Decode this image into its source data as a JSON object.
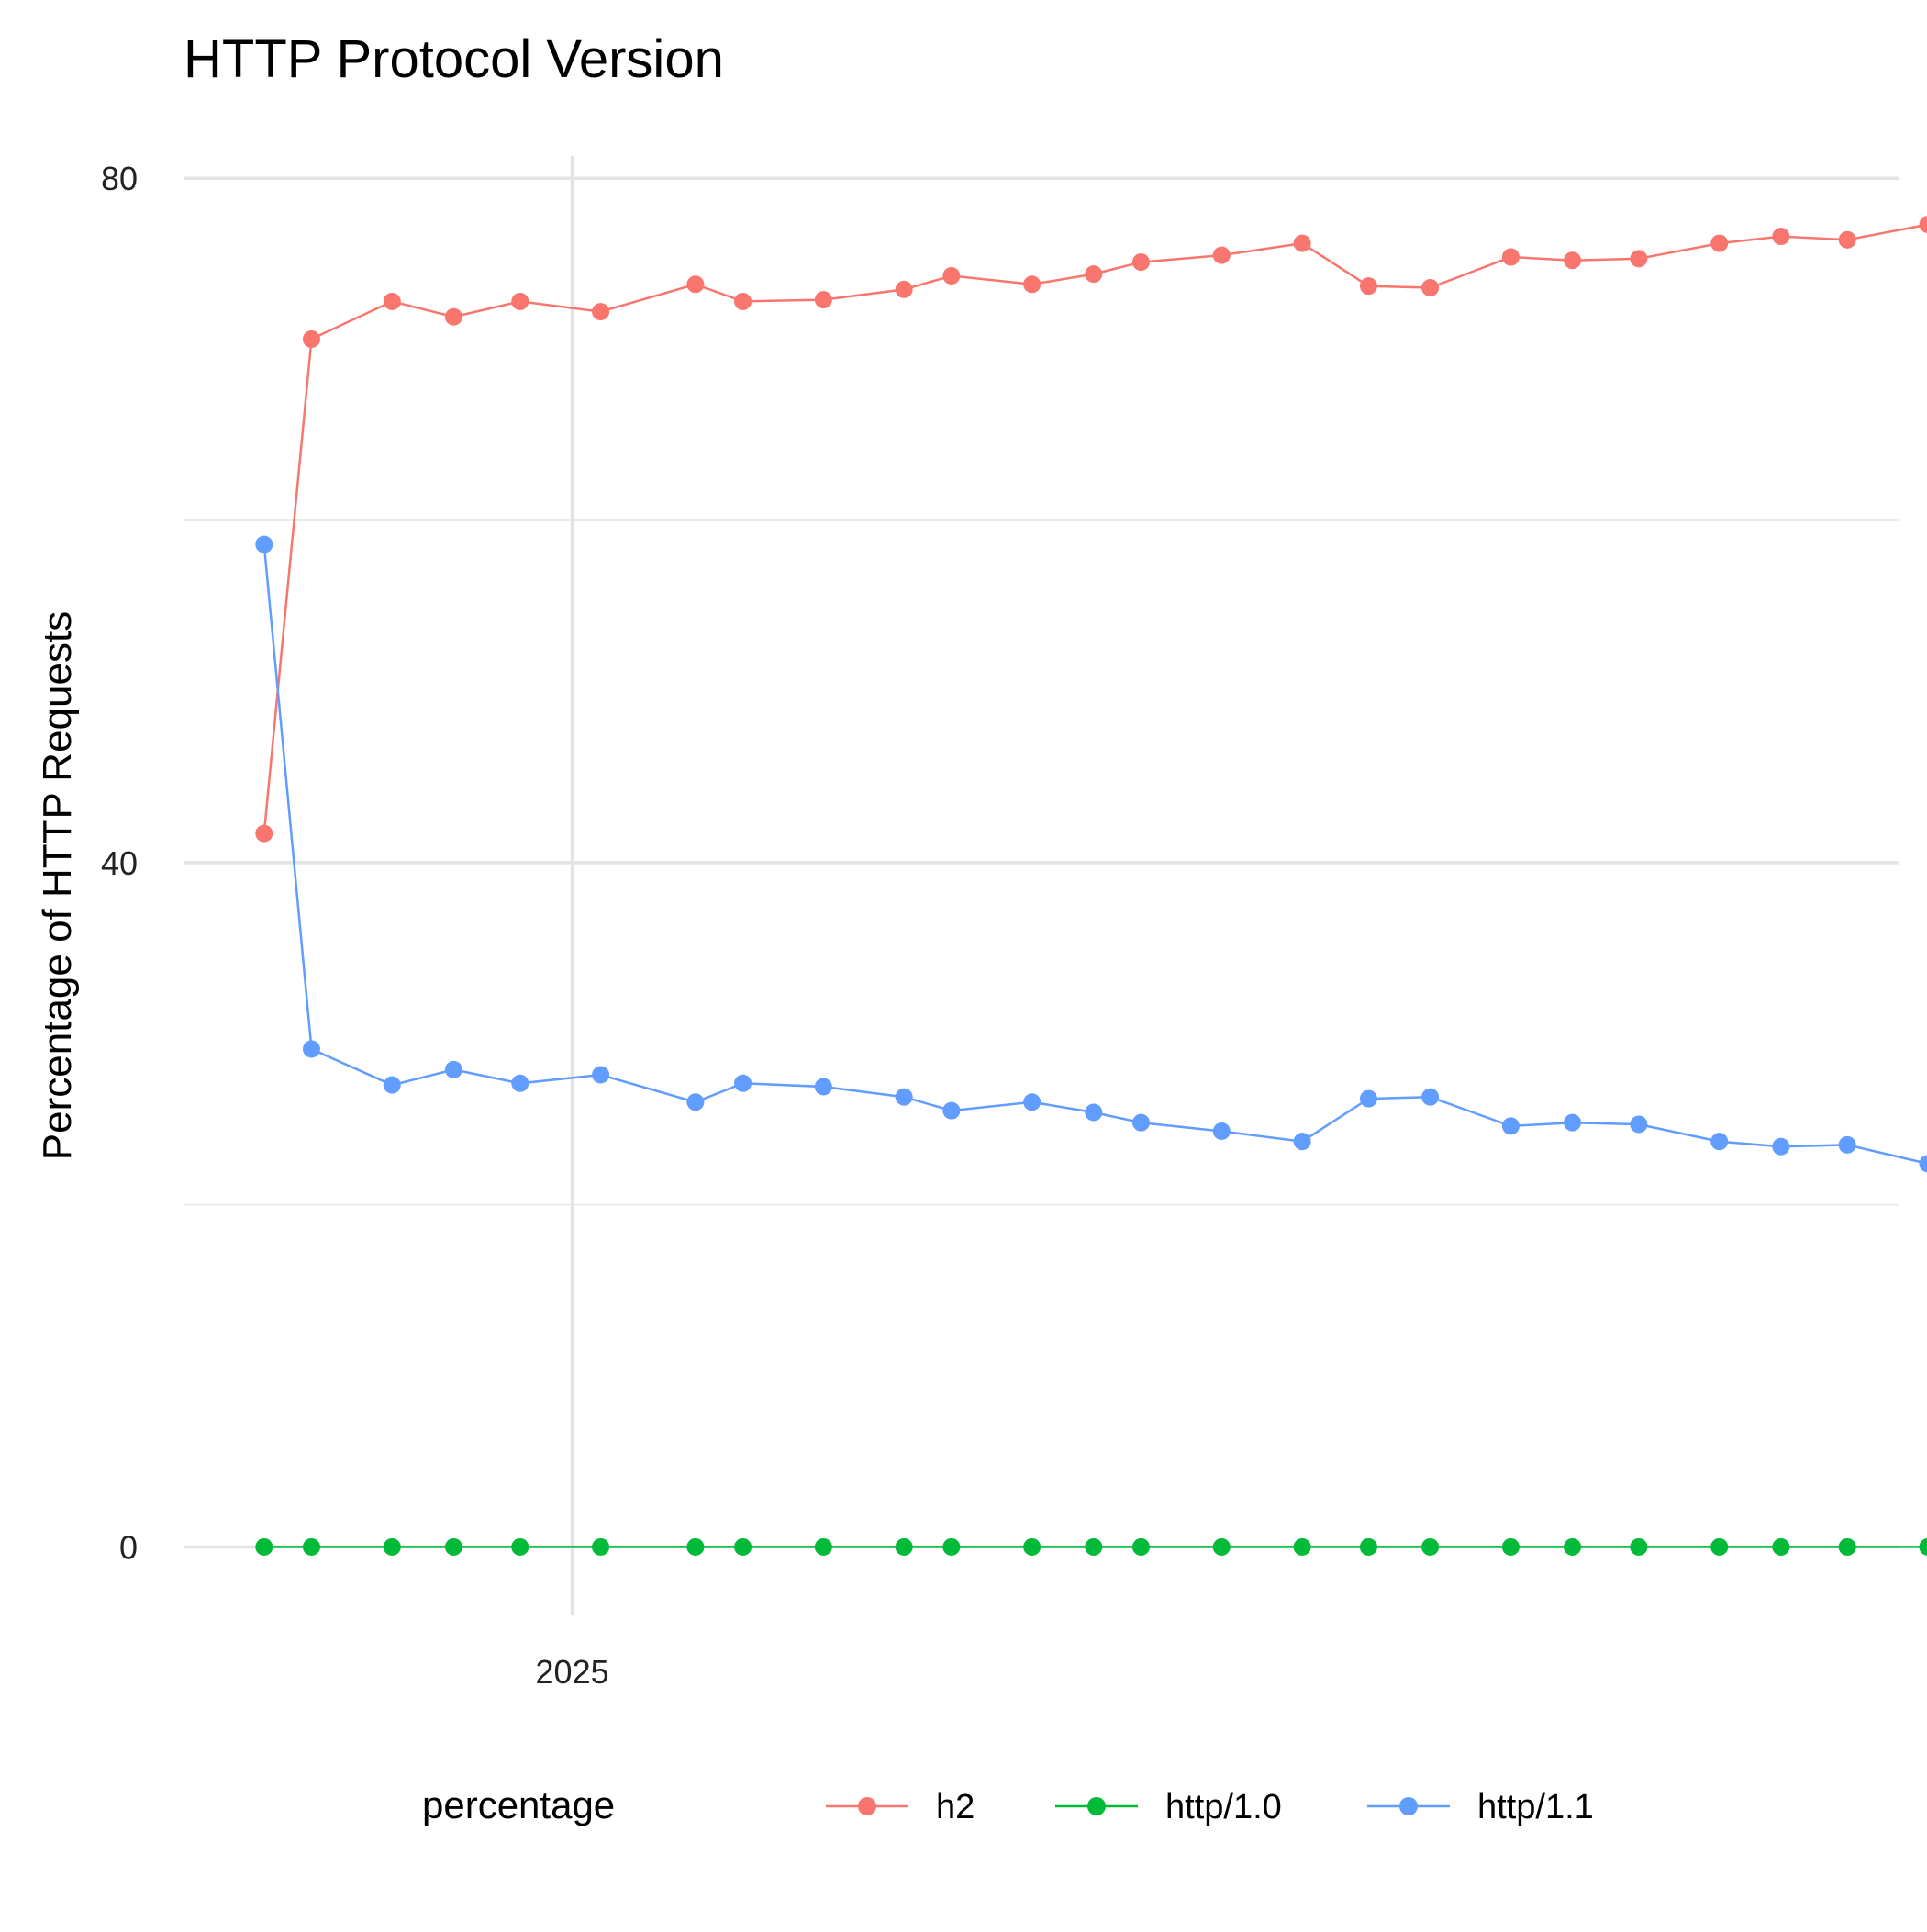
{
  "chart_data": {
    "type": "line",
    "title": "HTTP Protocol Version",
    "xlabel": "",
    "ylabel": "Percentage of HTTP Requests",
    "ylim": [
      -4,
      81.3
    ],
    "xlim": [
      "2024-10-11",
      "2025-10-08"
    ],
    "y_ticks": [
      0,
      40,
      80
    ],
    "y_minor_ticks": [
      20,
      60
    ],
    "x_ticks": [
      {
        "value": "2025-01-01",
        "label": "2025"
      }
    ],
    "grid": true,
    "legend": {
      "title": "percentage",
      "position": "bottom"
    },
    "x": [
      "2024-10-28",
      "2024-11-07",
      "2024-11-24",
      "2024-12-07",
      "2024-12-21",
      "2025-01-07",
      "2025-01-27",
      "2025-02-06",
      "2025-02-23",
      "2025-03-12",
      "2025-03-22",
      "2025-04-08",
      "2025-04-21",
      "2025-05-01",
      "2025-05-18",
      "2025-06-04",
      "2025-06-18",
      "2025-07-01",
      "2025-07-18",
      "2025-07-31",
      "2025-08-14",
      "2025-08-31",
      "2025-09-13",
      "2025-09-27",
      "2025-10-14"
    ],
    "series": [
      {
        "name": "h2",
        "color": "#F8766D",
        "values": [
          41.7,
          70.6,
          72.8,
          71.9,
          72.8,
          72.2,
          73.8,
          72.8,
          72.9,
          73.5,
          74.3,
          73.8,
          74.4,
          75.1,
          75.5,
          76.2,
          73.7,
          73.6,
          75.4,
          75.2,
          75.3,
          76.2,
          76.6,
          76.4,
          77.3
        ]
      },
      {
        "name": "http/1.0",
        "color": "#00BA38",
        "values": [
          0,
          0,
          0,
          0,
          0,
          0,
          0,
          0,
          0,
          0,
          0,
          0,
          0,
          0,
          0,
          0,
          0,
          0,
          0,
          0,
          0,
          0,
          0,
          0,
          0
        ]
      },
      {
        "name": "http/1.1",
        "color": "#619CFF",
        "values": [
          58.6,
          29.1,
          27.0,
          27.9,
          27.1,
          27.6,
          26.0,
          27.1,
          26.9,
          26.3,
          25.5,
          26.0,
          25.4,
          24.8,
          24.3,
          23.7,
          26.2,
          26.3,
          24.6,
          24.8,
          24.7,
          23.7,
          23.4,
          23.5,
          22.4
        ]
      }
    ]
  }
}
